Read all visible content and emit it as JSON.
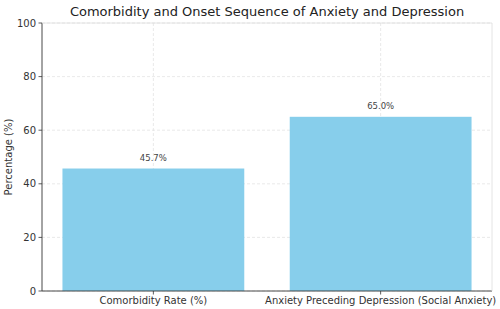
{
  "chart_data": {
    "type": "bar",
    "title": "Comorbidity and Onset Sequence of Anxiety and Depression",
    "y_label": "Percentage (%)",
    "categories": [
      "Comorbidity Rate (%)",
      "Anxiety Preceding Depression (Social Anxiety)"
    ],
    "values": [
      45.7,
      65.0
    ],
    "value_labels": [
      "45.7%",
      "65.0%"
    ],
    "data_labels": true,
    "color": "#87ceeb",
    "ylim": [
      0,
      100
    ],
    "yticks": [
      0,
      20,
      40,
      60,
      80,
      100
    ],
    "grid": true
  }
}
